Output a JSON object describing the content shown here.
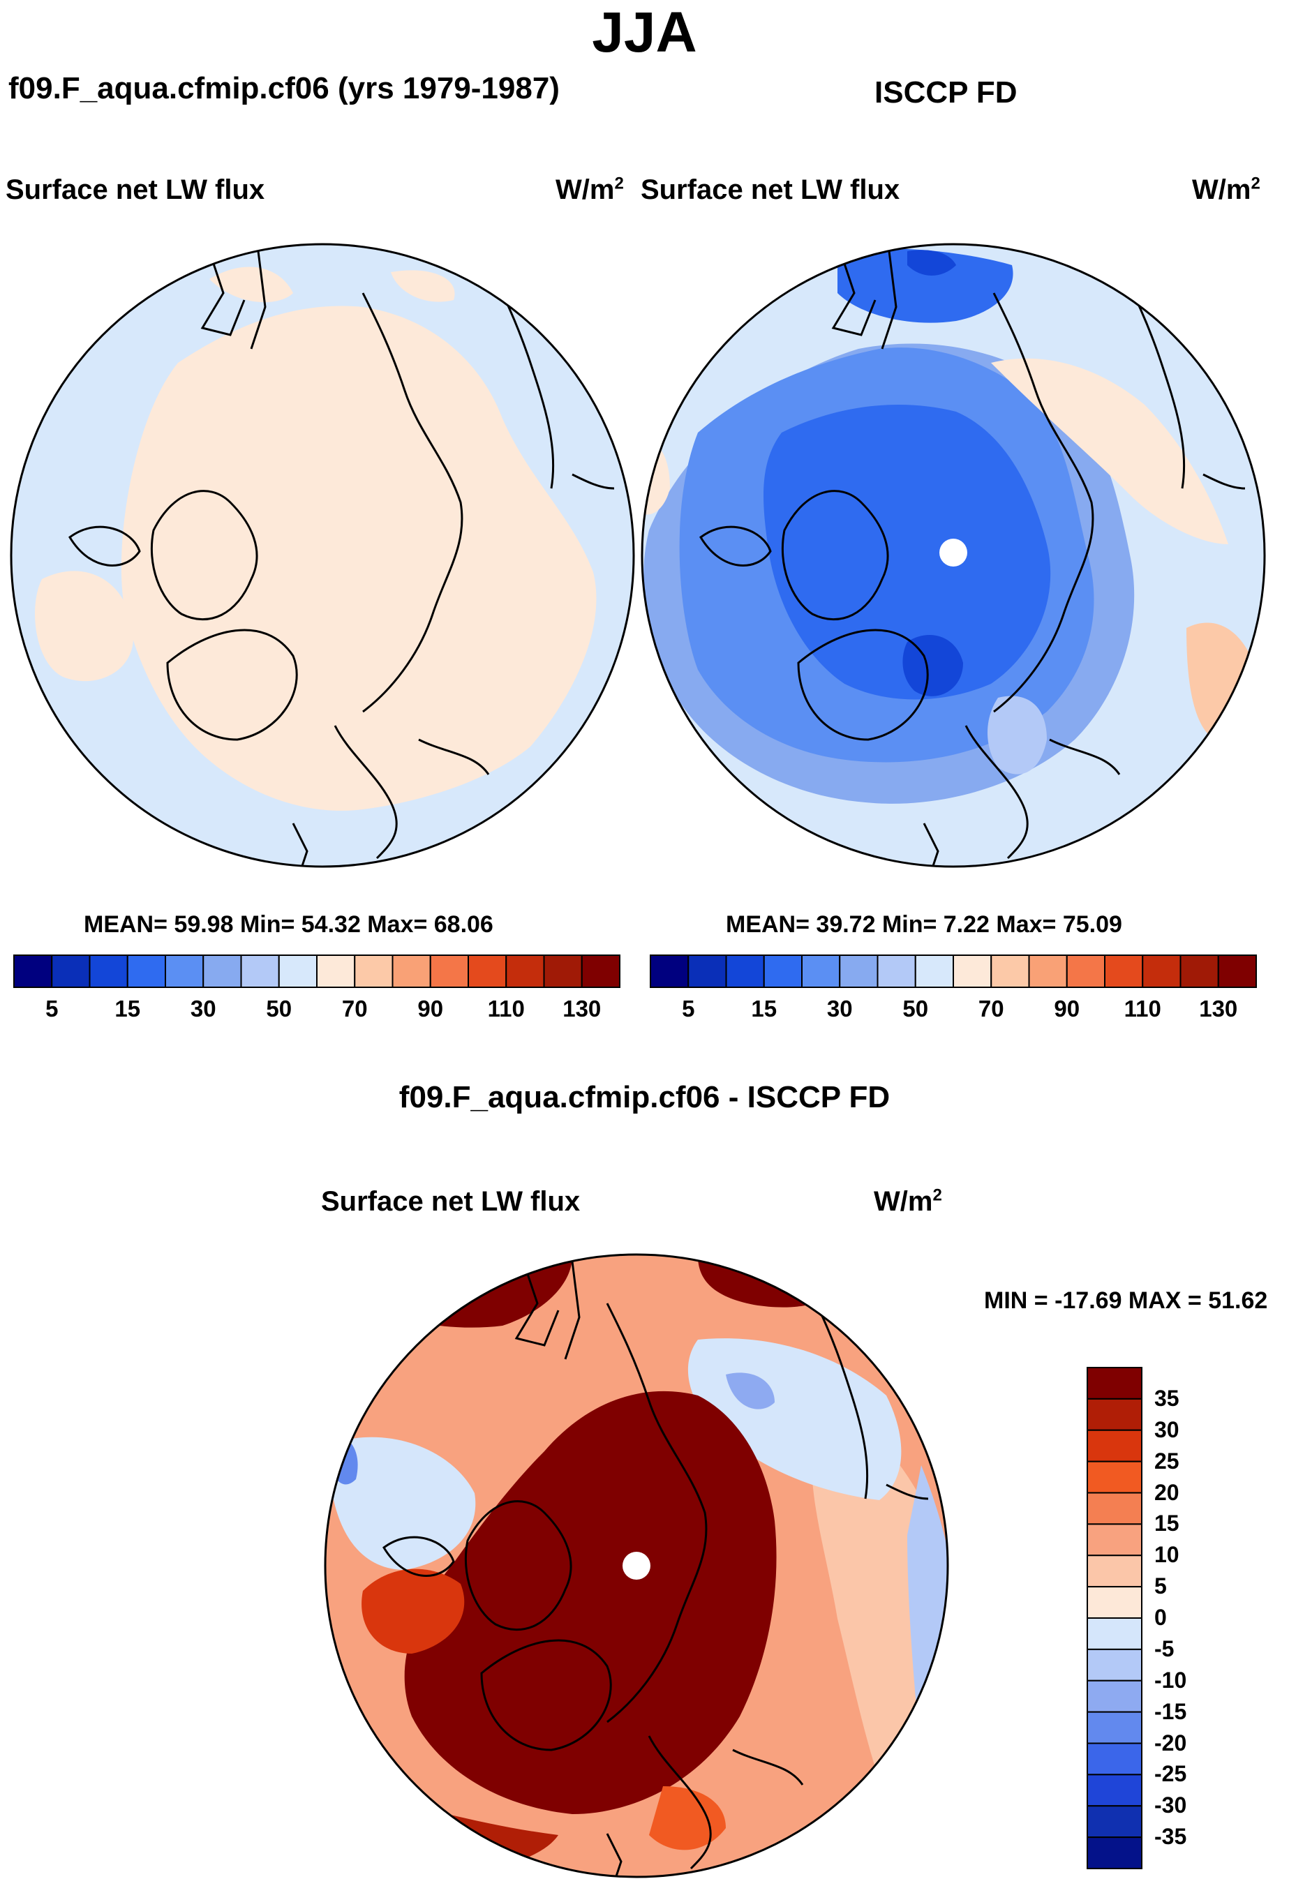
{
  "main_title": "JJA",
  "panels": {
    "model": {
      "title": "f09.F_aqua.cfmip.cf06 (yrs 1979-1987)",
      "variable": "Surface net LW flux",
      "units_base": "W/m",
      "units_exp": "2",
      "stats": "MEAN=  59.98  Min=  54.32  Max=  68.06"
    },
    "obs": {
      "title": "ISCCP FD",
      "variable": "Surface net LW flux",
      "units_base": "W/m",
      "units_exp": "2",
      "stats": "MEAN=  39.72  Min=   7.22  Max=  75.09"
    },
    "diff": {
      "title": "f09.F_aqua.cfmip.cf06 - ISCCP FD",
      "variable": "Surface net LW flux",
      "units_base": "W/m",
      "units_exp": "2",
      "stats": "MIN = -17.69 MAX =  51.62"
    }
  },
  "abs_colorbar": {
    "colors": [
      "#00007f",
      "#0a2fb8",
      "#1346d8",
      "#2f6bf0",
      "#5b8ff3",
      "#87aaf0",
      "#b3c9f7",
      "#d7e8fb",
      "#fde9d9",
      "#fcc9a8",
      "#f9a176",
      "#f47648",
      "#e44a1d",
      "#c42d0c",
      "#a01a06",
      "#7f0000"
    ],
    "labels": [
      "5",
      "15",
      "30",
      "50",
      "70",
      "90",
      "110",
      "130"
    ]
  },
  "diff_colorbar": {
    "colors": [
      "#7f0000",
      "#b01e06",
      "#d9360d",
      "#f15a22",
      "#f47f52",
      "#f8a27f",
      "#fbc6a9",
      "#fde8d8",
      "#d5e6fb",
      "#b3c9f7",
      "#8eaaf1",
      "#6289ee",
      "#3b66ea",
      "#1f45d8",
      "#1030b0",
      "#04128a"
    ],
    "labels": [
      "35",
      "30",
      "25",
      "20",
      "15",
      "10",
      "5",
      "0",
      "-5",
      "-10",
      "-15",
      "-20",
      "-25",
      "-30",
      "-35"
    ]
  }
}
